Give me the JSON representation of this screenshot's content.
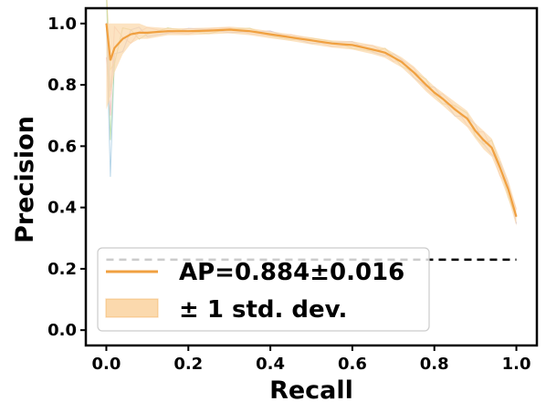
{
  "chart_data": {
    "type": "line",
    "xlabel": "Recall",
    "ylabel": "Precision",
    "xlim": [
      -0.05,
      1.05
    ],
    "ylim": [
      -0.05,
      1.05
    ],
    "xticks": [
      "0.0",
      "0.2",
      "0.4",
      "0.6",
      "0.8",
      "1.0"
    ],
    "yticks": [
      "0.0",
      "0.2",
      "0.4",
      "0.6",
      "0.8",
      "1.0"
    ],
    "legend_position": "lower-left",
    "mean_curve": {
      "name": "AP=0.884±0.016",
      "color": "#f0a040",
      "x": [
        0.0,
        0.01,
        0.02,
        0.04,
        0.06,
        0.08,
        0.1,
        0.15,
        0.2,
        0.25,
        0.3,
        0.35,
        0.4,
        0.45,
        0.5,
        0.55,
        0.6,
        0.65,
        0.68,
        0.7,
        0.72,
        0.75,
        0.78,
        0.8,
        0.82,
        0.85,
        0.88,
        0.9,
        0.92,
        0.94,
        0.96,
        0.98,
        1.0
      ],
      "y": [
        1.0,
        0.88,
        0.92,
        0.95,
        0.965,
        0.97,
        0.97,
        0.975,
        0.975,
        0.977,
        0.98,
        0.975,
        0.965,
        0.955,
        0.945,
        0.935,
        0.93,
        0.915,
        0.905,
        0.89,
        0.875,
        0.84,
        0.8,
        0.775,
        0.755,
        0.72,
        0.69,
        0.65,
        0.62,
        0.595,
        0.53,
        0.46,
        0.37
      ]
    },
    "std_band": {
      "name": "± 1 std. dev.",
      "color": "#fbd9ad",
      "upper": [
        1.0,
        1.0,
        1.0,
        1.0,
        1.0,
        1.0,
        0.99,
        0.985,
        0.985,
        0.987,
        0.99,
        0.985,
        0.975,
        0.965,
        0.955,
        0.945,
        0.942,
        0.93,
        0.92,
        0.905,
        0.89,
        0.86,
        0.82,
        0.795,
        0.775,
        0.745,
        0.715,
        0.675,
        0.65,
        0.625,
        0.56,
        0.49,
        0.4
      ],
      "lower": [
        0.72,
        0.76,
        0.84,
        0.9,
        0.935,
        0.95,
        0.95,
        0.962,
        0.962,
        0.965,
        0.968,
        0.962,
        0.952,
        0.943,
        0.932,
        0.922,
        0.915,
        0.9,
        0.888,
        0.872,
        0.857,
        0.82,
        0.778,
        0.755,
        0.733,
        0.697,
        0.662,
        0.625,
        0.59,
        0.565,
        0.5,
        0.43,
        0.34
      ]
    },
    "fold_curves": {
      "colors": [
        "#9ec7e0",
        "#a8d5a0",
        "#f2b6b6",
        "#d0b8e0",
        "#e8d08a"
      ],
      "starts": [
        0.5,
        0.62,
        0.7,
        0.78,
        0.85
      ]
    },
    "baseline": {
      "y": 0.23,
      "color": "#000000"
    },
    "baseline_shadow": {
      "color": "#c8c8c8"
    }
  }
}
